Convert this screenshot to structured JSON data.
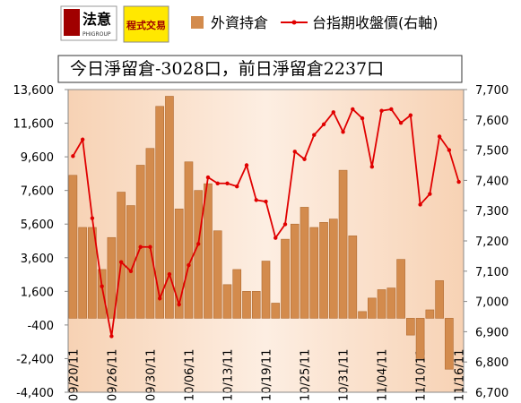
{
  "logo": {
    "name": "法意",
    "sub": "PHIGROUP",
    "badge": "程式交易"
  },
  "chart_data": {
    "type": "bar-line",
    "title": "今日淨留倉-3028口，前日淨留倉2237口",
    "categories": [
      "09/20/11",
      null,
      null,
      null,
      "09/26/11",
      null,
      null,
      null,
      "09/30/11",
      null,
      null,
      null,
      "10/06/11",
      null,
      null,
      null,
      "10/13/11",
      null,
      null,
      null,
      "10/19/11",
      null,
      null,
      null,
      "10/25/11",
      null,
      null,
      null,
      "10/31/11",
      null,
      null,
      null,
      "11/04/11",
      null,
      null,
      null,
      "11/10/11",
      null,
      null,
      null,
      "11/16/11"
    ],
    "series": [
      {
        "name": "外資持倉",
        "color": "#d38b4d",
        "axis": "y",
        "kind": "bar",
        "values": [
          8500,
          5400,
          5400,
          2900,
          4800,
          7500,
          6700,
          9100,
          10100,
          12600,
          13200,
          6500,
          9300,
          7600,
          8000,
          5200,
          2000,
          2900,
          1600,
          1600,
          3400,
          900,
          4700,
          5600,
          6600,
          5400,
          5700,
          5900,
          8800,
          4900,
          400,
          1200,
          1700,
          1800,
          3500,
          -1000,
          -2400,
          500,
          2237,
          -3028,
          0
        ]
      },
      {
        "name": "台指期收盤價(右軸)",
        "color": "#e00000",
        "axis": "y2",
        "kind": "line",
        "values": [
          7480,
          7535,
          7275,
          7050,
          6885,
          7130,
          7100,
          7180,
          7180,
          7010,
          7090,
          6990,
          7120,
          7190,
          7410,
          7390,
          7390,
          7380,
          7450,
          7335,
          7330,
          7210,
          7255,
          7495,
          7470,
          7550,
          7585,
          7625,
          7560,
          7635,
          7605,
          7445,
          7630,
          7635,
          7590,
          7615,
          7320,
          7355,
          7545,
          7500,
          7395
        ]
      }
    ],
    "ylim": [
      -4400,
      13600
    ],
    "yticks": [
      {
        "value": 13600,
        "label": "13,600"
      },
      {
        "value": 11600,
        "label": "11,600"
      },
      {
        "value": 9600,
        "label": "9,600"
      },
      {
        "value": 7600,
        "label": "7,600"
      },
      {
        "value": 5600,
        "label": "5,600"
      },
      {
        "value": 3600,
        "label": "3,600"
      },
      {
        "value": 1600,
        "label": "1,600"
      },
      -400,
      {
        "value": -2400,
        "label": "-2,400"
      },
      {
        "value": -4400,
        "label": "-4,400"
      }
    ],
    "y2lim": [
      6700,
      7700
    ],
    "y2ticks": [
      {
        "value": 7700,
        "label": "7,700"
      },
      {
        "value": 7600,
        "label": "7,600"
      },
      {
        "value": 7500,
        "label": "7,500"
      },
      {
        "value": 7400,
        "label": "7,400"
      },
      {
        "value": 7300,
        "label": "7,300"
      },
      {
        "value": 7200,
        "label": "7,200"
      },
      {
        "value": 7100,
        "label": "7,100"
      },
      {
        "value": 7000,
        "label": "7,000"
      },
      {
        "value": 6900,
        "label": "6,900"
      },
      {
        "value": 6800,
        "label": "6,800"
      },
      {
        "value": 6700,
        "label": "6,700"
      }
    ]
  }
}
